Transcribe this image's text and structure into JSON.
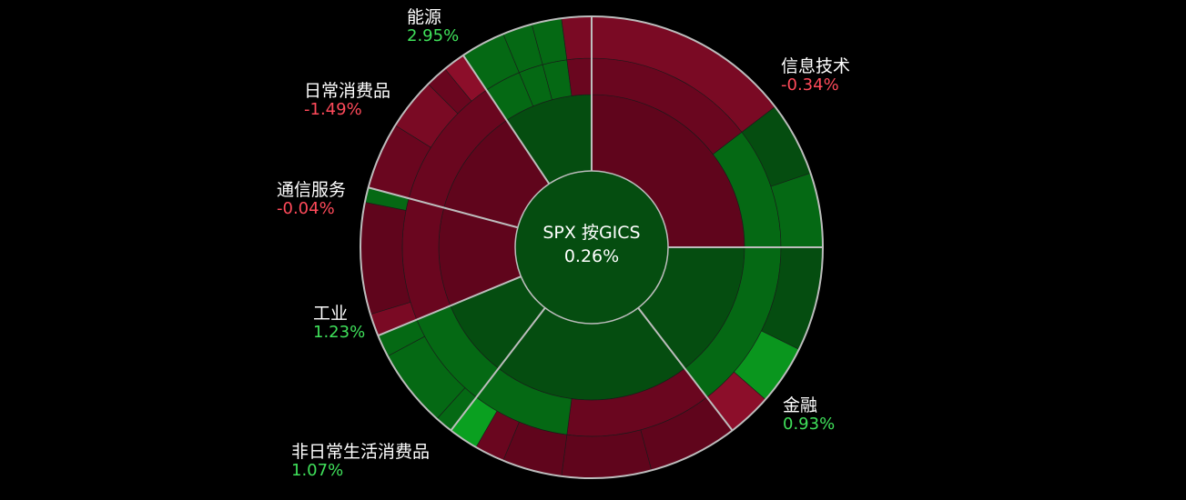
{
  "chart_data": {
    "type": "sunburst",
    "center": {
      "title": "SPX 按GICS",
      "value": "0.26%"
    },
    "sectors": [
      {
        "name": "信息技术",
        "change": "-0.34%",
        "weight": 24.0,
        "trend": "down",
        "groups": [
          {
            "weight": 14.0,
            "trend": "down",
            "stocks": [
              {
                "weight": 14.0,
                "color": "#7a0a24"
              }
            ]
          },
          {
            "weight": 10.0,
            "trend": "up",
            "stocks": [
              {
                "weight": 5.0,
                "color": "#054d10"
              },
              {
                "weight": 5.0,
                "color": "#056914"
              }
            ]
          }
        ]
      },
      {
        "name": "金融",
        "change": "0.93%",
        "weight": 14.0,
        "trend": "up",
        "groups": [
          {
            "weight": 14.0,
            "trend": "up",
            "stocks": [
              {
                "weight": 7.0,
                "color": "#054d10"
              },
              {
                "weight": 4.0,
                "color": "#0a961e"
              },
              {
                "weight": 3.0,
                "color": "#8c0e2a"
              }
            ]
          }
        ]
      },
      {
        "name": "非日常生活消费品",
        "change": "1.07%",
        "weight": 20.0,
        "trend": "up",
        "groups": [
          {
            "weight": 12.0,
            "trend": "down",
            "stocks": [
              {
                "weight": 6.0,
                "color": "#60051c"
              },
              {
                "weight": 6.0,
                "color": "#60051c"
              }
            ]
          },
          {
            "weight": 8.0,
            "trend": "up",
            "stocks": [
              {
                "weight": 4.0,
                "color": "#60051c"
              },
              {
                "weight": 2.0,
                "color": "#6a061f"
              },
              {
                "weight": 2.0,
                "color": "#0aa020"
              }
            ]
          }
        ]
      },
      {
        "name": "工业",
        "change": "1.23%",
        "weight": 8.0,
        "trend": "up",
        "groups": [
          {
            "weight": 8.0,
            "trend": "up",
            "stocks": [
              {
                "weight": 1.2,
                "color": "#056914"
              },
              {
                "weight": 5.3,
                "color": "#056914"
              },
              {
                "weight": 1.5,
                "color": "#056914"
              }
            ]
          }
        ]
      },
      {
        "name": "通信服务",
        "change": "-0.04%",
        "weight": 10.0,
        "trend": "down",
        "groups": [
          {
            "weight": 10.0,
            "trend": "down",
            "stocks": [
              {
                "weight": 1.5,
                "color": "#7a0a24"
              },
              {
                "weight": 7.5,
                "color": "#60051c"
              },
              {
                "weight": 1.0,
                "color": "#056914"
              }
            ]
          }
        ]
      },
      {
        "name": "日常消费品",
        "change": "-1.49%",
        "weight": 11.0,
        "trend": "down",
        "groups": [
          {
            "weight": 11.0,
            "trend": "down",
            "stocks": [
              {
                "weight": 4.5,
                "color": "#6a061f"
              },
              {
                "weight": 3.5,
                "color": "#7a0a24"
              },
              {
                "weight": 1.5,
                "color": "#6a061f"
              },
              {
                "weight": 1.5,
                "color": "#8c0e2a"
              }
            ]
          }
        ]
      },
      {
        "name": "能源",
        "change": "2.95%",
        "weight": 9.0,
        "trend": "up",
        "groups": [
          {
            "weight": 3.0,
            "trend": "up",
            "stocks": [
              {
                "weight": 3.0,
                "color": "#056914"
              }
            ]
          },
          {
            "weight": 2.0,
            "trend": "up",
            "stocks": [
              {
                "weight": 2.0,
                "color": "#056914"
              }
            ]
          },
          {
            "weight": 2.0,
            "trend": "up",
            "stocks": [
              {
                "weight": 2.0,
                "color": "#056914"
              }
            ]
          },
          {
            "weight": 2.0,
            "trend": "down",
            "stocks": [
              {
                "weight": 2.0,
                "color": "#7a0a24"
              }
            ]
          }
        ]
      }
    ]
  },
  "colors": {
    "background": "#000000",
    "center_fill": "#054d10",
    "up_sector": "#054d10",
    "down_sector": "#60051c",
    "up_group": "#056914",
    "down_group": "#6a061f",
    "divider": "#bdbdbd",
    "positive_text": "#3fe05a",
    "negative_text": "#ff4a5a"
  }
}
